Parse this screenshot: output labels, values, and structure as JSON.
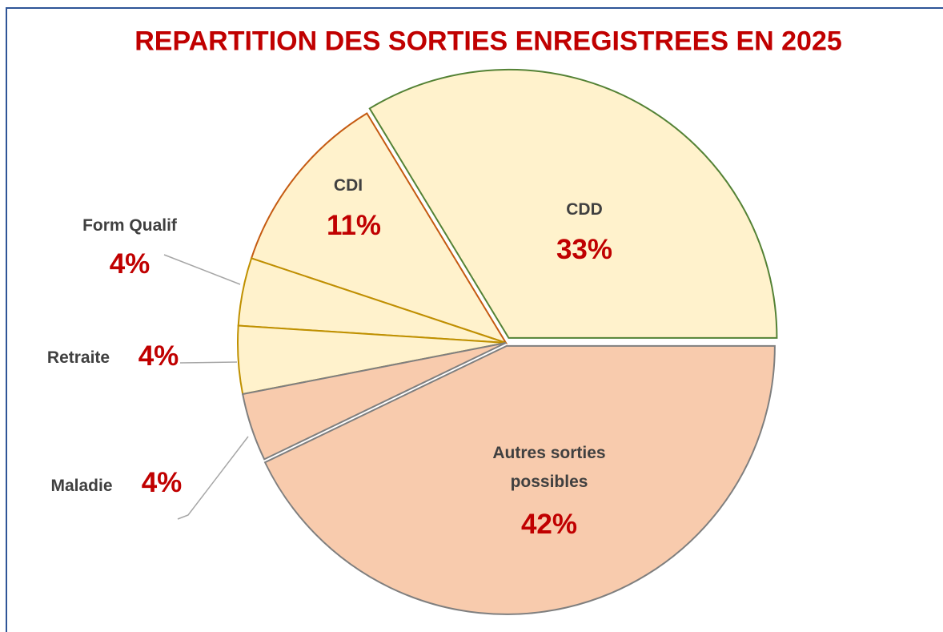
{
  "chart_data": {
    "type": "pie",
    "title": "REPARTITION DES SORTIES ENREGISTREES EN  2025",
    "categories": [
      "CDD",
      "CDI",
      "Form Qualif",
      "Retraite",
      "Maladie",
      "Autres sorties possibles"
    ],
    "values": [
      33,
      11,
      4,
      4,
      4,
      42
    ],
    "value_labels": [
      "33%",
      "11%",
      "4%",
      "4%",
      "4%",
      "42%"
    ],
    "colors": [
      "#fff2cc",
      "#fff2cc",
      "#fff2cc",
      "#fff2cc",
      "#f8cbad",
      "#f8cbad"
    ],
    "edge_colors": [
      "#548235",
      "#c55a11",
      "#bf9000",
      "#bf9000",
      "#7f7f7f",
      "#7f7f7f"
    ]
  }
}
